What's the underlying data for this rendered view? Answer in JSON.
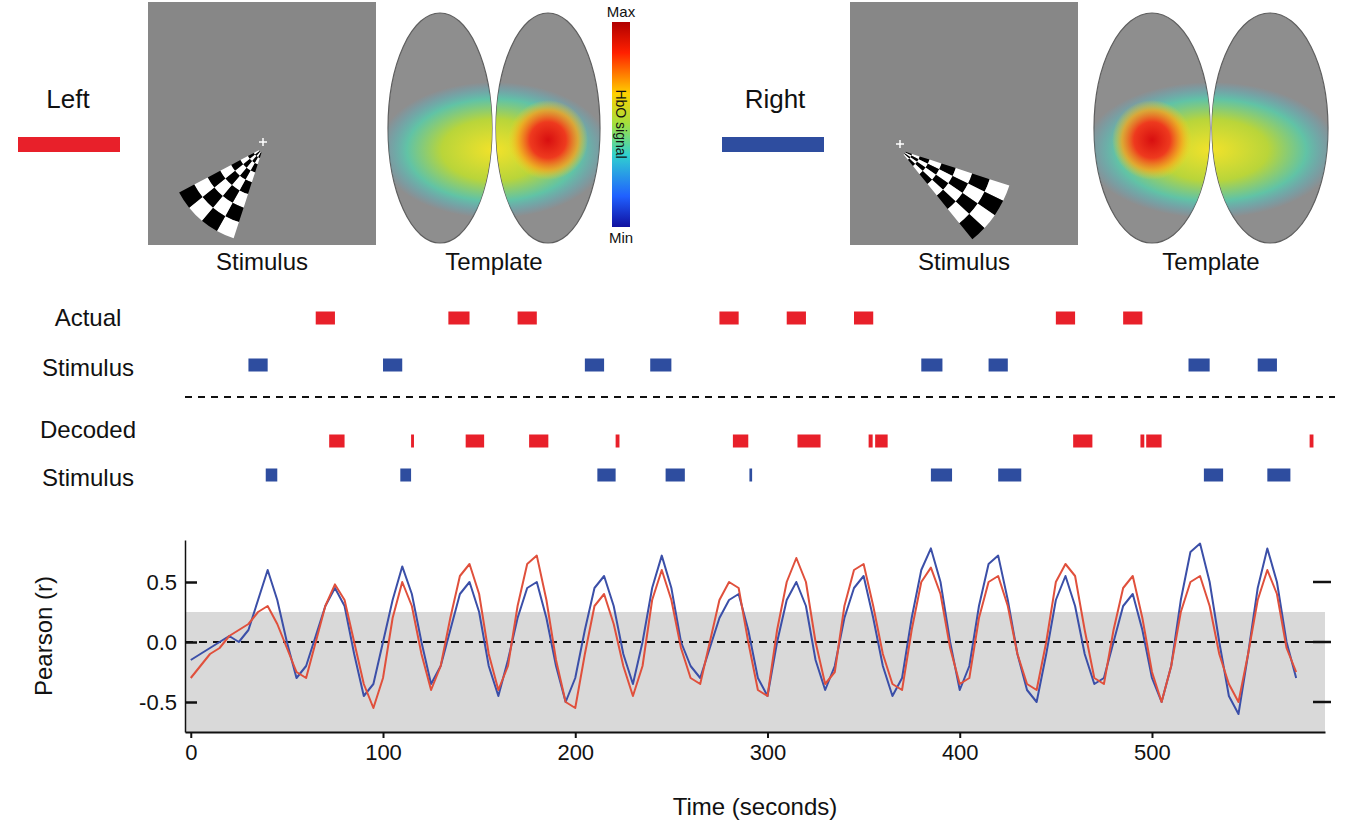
{
  "header": {
    "conditions": [
      {
        "name": "Left",
        "color": "#e8202a",
        "stimulus_label": "Stimulus",
        "template_label": "Template"
      },
      {
        "name": "Right",
        "color": "#2e4d9f",
        "stimulus_label": "Stimulus",
        "template_label": "Template"
      }
    ],
    "colorbar": {
      "label": "HbO signal",
      "max_label": "Max",
      "min_label": "Min"
    }
  },
  "chart_data": [
    {
      "type": "timeline",
      "xlim": [
        -3,
        590
      ],
      "tick_labels": false,
      "groups": [
        {
          "label": [
            "Actual",
            "Stimulus"
          ],
          "series": [
            {
              "color": "#e8202a",
              "events": [
                [
                  65,
                  75
                ],
                [
                  134,
                  145
                ],
                [
                  170,
                  180
                ],
                [
                  275,
                  285
                ],
                [
                  310,
                  320
                ],
                [
                  345,
                  355
                ],
                [
                  450,
                  460
                ],
                [
                  485,
                  495
                ]
              ]
            },
            {
              "color": "#2e4d9f",
              "events": [
                [
                  30,
                  40
                ],
                [
                  100,
                  110
                ],
                [
                  205,
                  215
                ],
                [
                  239,
                  250
                ],
                [
                  380,
                  391
                ],
                [
                  415,
                  425
                ],
                [
                  519,
                  530
                ],
                [
                  555,
                  565
                ]
              ]
            }
          ]
        },
        {
          "label": [
            "Decoded",
            "Stimulus"
          ],
          "series": [
            {
              "color": "#e8202a",
              "events": [
                [
                  72,
                  80
                ],
                [
                  114.6,
                  116.1
                ],
                [
                  143,
                  152.6
                ],
                [
                  176,
                  186
                ],
                [
                  221,
                  223
                ],
                [
                  282,
                  290
                ],
                [
                  315.6,
                  327.6
                ],
                [
                  352.6,
                  354.7
                ],
                [
                  356,
                  362.5
                ],
                [
                  459,
                  469
                ],
                [
                  494,
                  496
                ],
                [
                  497,
                  505
                ],
                [
                  582,
                  584
                ]
              ]
            },
            {
              "color": "#2e4d9f",
              "events": [
                [
                  39,
                  45
                ],
                [
                  109,
                  114.6
                ],
                [
                  211.5,
                  221
                ],
                [
                  247,
                  257
                ],
                [
                  290.6,
                  292
                ],
                [
                  385,
                  396
                ],
                [
                  420,
                  432
                ],
                [
                  527,
                  537
                ],
                [
                  560,
                  572
                ]
              ]
            }
          ]
        }
      ]
    },
    {
      "type": "line",
      "xlabel": "Time (seconds)",
      "ylabel": "Pearson (r)",
      "xlim": [
        -3,
        590
      ],
      "ylim": [
        -0.75,
        0.85
      ],
      "xticks": [
        0,
        100,
        200,
        300,
        400,
        500
      ],
      "yticks": [
        {
          "value": -0.5,
          "label": "-0.5"
        },
        {
          "value": 0,
          "label": "0.0"
        },
        {
          "value": 0.5,
          "label": "0.5"
        }
      ],
      "threshold_band": [
        -0.75,
        0.25
      ],
      "zero_line": 0,
      "x": [
        0,
        5,
        10,
        15,
        20,
        25,
        30,
        35,
        40,
        45,
        50,
        55,
        60,
        65,
        70,
        75,
        80,
        85,
        90,
        95,
        100,
        105,
        110,
        115,
        120,
        125,
        130,
        135,
        140,
        145,
        150,
        155,
        160,
        165,
        170,
        175,
        180,
        185,
        190,
        195,
        200,
        205,
        210,
        215,
        220,
        225,
        230,
        235,
        240,
        245,
        250,
        255,
        260,
        265,
        270,
        275,
        280,
        285,
        290,
        295,
        300,
        305,
        310,
        315,
        320,
        325,
        330,
        335,
        340,
        345,
        350,
        355,
        360,
        365,
        370,
        375,
        380,
        385,
        390,
        395,
        400,
        405,
        410,
        415,
        420,
        425,
        430,
        435,
        440,
        445,
        450,
        455,
        460,
        465,
        470,
        475,
        480,
        485,
        490,
        495,
        500,
        505,
        510,
        515,
        520,
        525,
        530,
        535,
        540,
        545,
        550,
        555,
        560,
        565,
        570,
        575
      ],
      "series": [
        {
          "color": "#3b4fa8",
          "values": [
            -0.15,
            -0.1,
            -0.05,
            0.0,
            0.05,
            0.0,
            0.1,
            0.35,
            0.6,
            0.35,
            0.0,
            -0.3,
            -0.2,
            0.05,
            0.3,
            0.45,
            0.3,
            -0.1,
            -0.45,
            -0.35,
            0.0,
            0.35,
            0.63,
            0.4,
            0.0,
            -0.35,
            -0.2,
            0.1,
            0.4,
            0.5,
            0.25,
            -0.2,
            -0.45,
            -0.15,
            0.2,
            0.45,
            0.5,
            0.2,
            -0.2,
            -0.5,
            -0.3,
            0.1,
            0.45,
            0.55,
            0.3,
            -0.1,
            -0.35,
            0.0,
            0.45,
            0.72,
            0.45,
            0.0,
            -0.2,
            -0.3,
            -0.05,
            0.2,
            0.35,
            0.4,
            0.1,
            -0.3,
            -0.45,
            0.0,
            0.35,
            0.5,
            0.3,
            -0.15,
            -0.4,
            -0.2,
            0.2,
            0.45,
            0.55,
            0.2,
            -0.2,
            -0.45,
            -0.3,
            0.2,
            0.6,
            0.78,
            0.5,
            0.0,
            -0.4,
            -0.2,
            0.3,
            0.65,
            0.72,
            0.35,
            -0.1,
            -0.4,
            -0.5,
            -0.1,
            0.35,
            0.55,
            0.3,
            -0.1,
            -0.35,
            -0.3,
            0.0,
            0.3,
            0.4,
            0.1,
            -0.3,
            -0.5,
            -0.2,
            0.35,
            0.75,
            0.82,
            0.5,
            0.0,
            -0.45,
            -0.6,
            -0.1,
            0.45,
            0.78,
            0.5,
            0.0,
            -0.3
          ]
        },
        {
          "color": "#e0503c",
          "values": [
            -0.3,
            -0.2,
            -0.1,
            -0.05,
            0.05,
            0.1,
            0.15,
            0.25,
            0.3,
            0.15,
            -0.05,
            -0.25,
            -0.3,
            0.0,
            0.3,
            0.48,
            0.35,
            0.0,
            -0.35,
            -0.55,
            -0.3,
            0.2,
            0.5,
            0.3,
            -0.1,
            -0.4,
            -0.2,
            0.2,
            0.55,
            0.65,
            0.4,
            -0.1,
            -0.4,
            -0.2,
            0.3,
            0.65,
            0.72,
            0.35,
            -0.15,
            -0.5,
            -0.55,
            -0.1,
            0.3,
            0.4,
            0.15,
            -0.2,
            -0.45,
            -0.2,
            0.35,
            0.6,
            0.35,
            -0.05,
            -0.3,
            -0.35,
            0.0,
            0.35,
            0.5,
            0.45,
            0.0,
            -0.4,
            -0.45,
            0.1,
            0.5,
            0.7,
            0.5,
            0.0,
            -0.35,
            -0.25,
            0.3,
            0.6,
            0.65,
            0.3,
            -0.1,
            -0.35,
            -0.4,
            0.1,
            0.5,
            0.62,
            0.4,
            -0.05,
            -0.35,
            -0.3,
            0.2,
            0.5,
            0.55,
            0.3,
            -0.1,
            -0.35,
            -0.4,
            0.0,
            0.5,
            0.65,
            0.55,
            0.1,
            -0.3,
            -0.35,
            0.1,
            0.45,
            0.55,
            0.2,
            -0.25,
            -0.5,
            -0.2,
            0.25,
            0.5,
            0.55,
            0.3,
            -0.1,
            -0.35,
            -0.5,
            -0.1,
            0.35,
            0.6,
            0.4,
            -0.05,
            -0.25
          ]
        }
      ]
    }
  ]
}
